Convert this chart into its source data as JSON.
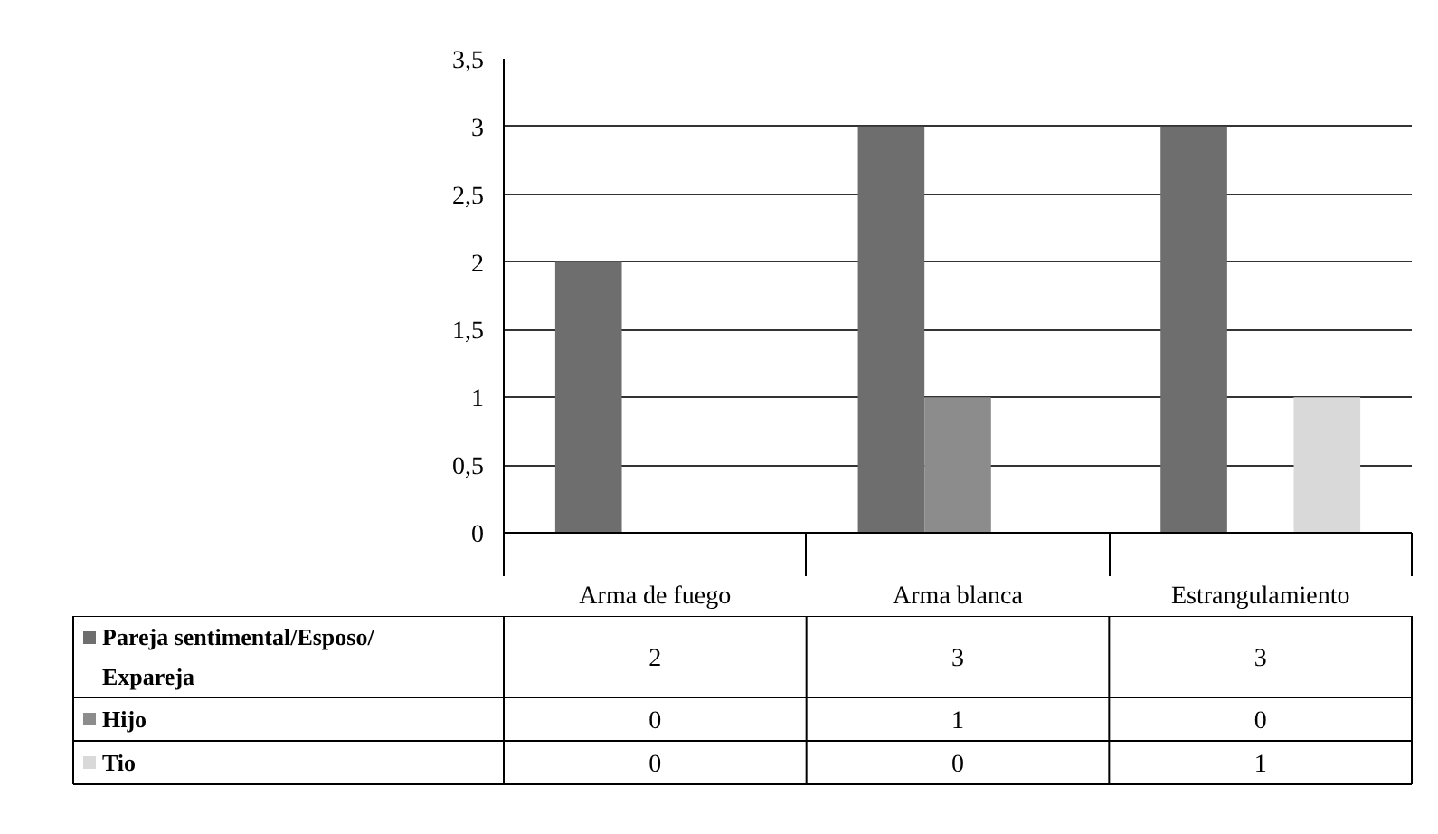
{
  "chart_data": {
    "type": "bar",
    "categories": [
      "Arma de fuego",
      "Arma blanca",
      "Estrangulamiento"
    ],
    "series": [
      {
        "name": "Pareja sentimental/Esposo/Expareja",
        "color": "#6e6e6e",
        "values": [
          2,
          3,
          3
        ]
      },
      {
        "name": "Hijo",
        "color": "#8c8c8c",
        "values": [
          0,
          1,
          0
        ]
      },
      {
        "name": "Tio",
        "color": "#d9d9d9",
        "values": [
          0,
          0,
          1
        ]
      }
    ],
    "ylim": [
      0,
      3.5
    ],
    "yticks": [
      0,
      {
        "value": 0.5,
        "label": "0,5"
      },
      1,
      {
        "value": 1.5,
        "label": "1,5"
      },
      2,
      {
        "value": 2.5,
        "label": "2,5"
      },
      3,
      {
        "value": 3.5,
        "label": "3,5"
      }
    ],
    "grid": "y",
    "data_labels": true,
    "legend": "bottom left"
  }
}
